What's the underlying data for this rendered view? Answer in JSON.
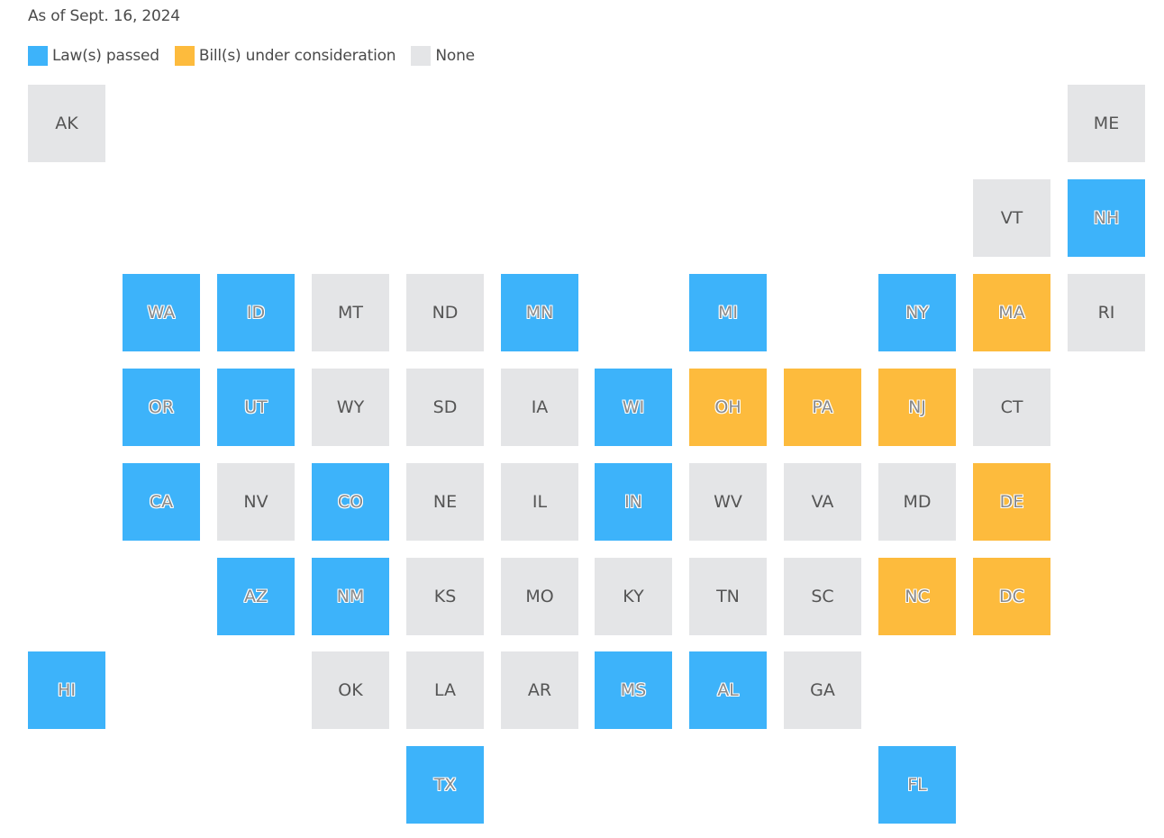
{
  "date_note": "As of Sept. 16, 2024",
  "colors": {
    "law": "#3db3fa",
    "bill": "#fdbb3d",
    "none": "#e4e5e7"
  },
  "legend": [
    {
      "key": "law",
      "label": "Law(s) passed"
    },
    {
      "key": "bill",
      "label": "Bill(s) under consideration"
    },
    {
      "key": "none",
      "label": "None"
    }
  ],
  "states": [
    {
      "abbr": "AK",
      "row": 0,
      "col": 0,
      "status": "none"
    },
    {
      "abbr": "ME",
      "row": 0,
      "col": 11,
      "status": "none"
    },
    {
      "abbr": "VT",
      "row": 1,
      "col": 10,
      "status": "none"
    },
    {
      "abbr": "NH",
      "row": 1,
      "col": 11,
      "status": "law"
    },
    {
      "abbr": "WA",
      "row": 2,
      "col": 1,
      "status": "law"
    },
    {
      "abbr": "ID",
      "row": 2,
      "col": 2,
      "status": "law"
    },
    {
      "abbr": "MT",
      "row": 2,
      "col": 3,
      "status": "none"
    },
    {
      "abbr": "ND",
      "row": 2,
      "col": 4,
      "status": "none"
    },
    {
      "abbr": "MN",
      "row": 2,
      "col": 5,
      "status": "law"
    },
    {
      "abbr": "MI",
      "row": 2,
      "col": 7,
      "status": "law"
    },
    {
      "abbr": "NY",
      "row": 2,
      "col": 9,
      "status": "law"
    },
    {
      "abbr": "MA",
      "row": 2,
      "col": 10,
      "status": "bill"
    },
    {
      "abbr": "RI",
      "row": 2,
      "col": 11,
      "status": "none"
    },
    {
      "abbr": "OR",
      "row": 3,
      "col": 1,
      "status": "law"
    },
    {
      "abbr": "UT",
      "row": 3,
      "col": 2,
      "status": "law"
    },
    {
      "abbr": "WY",
      "row": 3,
      "col": 3,
      "status": "none"
    },
    {
      "abbr": "SD",
      "row": 3,
      "col": 4,
      "status": "none"
    },
    {
      "abbr": "IA",
      "row": 3,
      "col": 5,
      "status": "none"
    },
    {
      "abbr": "WI",
      "row": 3,
      "col": 6,
      "status": "law"
    },
    {
      "abbr": "OH",
      "row": 3,
      "col": 7,
      "status": "bill"
    },
    {
      "abbr": "PA",
      "row": 3,
      "col": 8,
      "status": "bill"
    },
    {
      "abbr": "NJ",
      "row": 3,
      "col": 9,
      "status": "bill"
    },
    {
      "abbr": "CT",
      "row": 3,
      "col": 10,
      "status": "none"
    },
    {
      "abbr": "CA",
      "row": 4,
      "col": 1,
      "status": "law"
    },
    {
      "abbr": "NV",
      "row": 4,
      "col": 2,
      "status": "none"
    },
    {
      "abbr": "CO",
      "row": 4,
      "col": 3,
      "status": "law"
    },
    {
      "abbr": "NE",
      "row": 4,
      "col": 4,
      "status": "none"
    },
    {
      "abbr": "IL",
      "row": 4,
      "col": 5,
      "status": "none"
    },
    {
      "abbr": "IN",
      "row": 4,
      "col": 6,
      "status": "law"
    },
    {
      "abbr": "WV",
      "row": 4,
      "col": 7,
      "status": "none"
    },
    {
      "abbr": "VA",
      "row": 4,
      "col": 8,
      "status": "none"
    },
    {
      "abbr": "MD",
      "row": 4,
      "col": 9,
      "status": "none"
    },
    {
      "abbr": "DE",
      "row": 4,
      "col": 10,
      "status": "bill"
    },
    {
      "abbr": "AZ",
      "row": 5,
      "col": 2,
      "status": "law"
    },
    {
      "abbr": "NM",
      "row": 5,
      "col": 3,
      "status": "law"
    },
    {
      "abbr": "KS",
      "row": 5,
      "col": 4,
      "status": "none"
    },
    {
      "abbr": "MO",
      "row": 5,
      "col": 5,
      "status": "none"
    },
    {
      "abbr": "KY",
      "row": 5,
      "col": 6,
      "status": "none"
    },
    {
      "abbr": "TN",
      "row": 5,
      "col": 7,
      "status": "none"
    },
    {
      "abbr": "SC",
      "row": 5,
      "col": 8,
      "status": "none"
    },
    {
      "abbr": "NC",
      "row": 5,
      "col": 9,
      "status": "bill"
    },
    {
      "abbr": "DC",
      "row": 5,
      "col": 10,
      "status": "bill"
    },
    {
      "abbr": "HI",
      "row": 6,
      "col": 0,
      "status": "law"
    },
    {
      "abbr": "OK",
      "row": 6,
      "col": 3,
      "status": "none"
    },
    {
      "abbr": "LA",
      "row": 6,
      "col": 4,
      "status": "none"
    },
    {
      "abbr": "AR",
      "row": 6,
      "col": 5,
      "status": "none"
    },
    {
      "abbr": "MS",
      "row": 6,
      "col": 6,
      "status": "law"
    },
    {
      "abbr": "AL",
      "row": 6,
      "col": 7,
      "status": "law"
    },
    {
      "abbr": "GA",
      "row": 6,
      "col": 8,
      "status": "none"
    },
    {
      "abbr": "TX",
      "row": 7,
      "col": 4,
      "status": "law"
    },
    {
      "abbr": "FL",
      "row": 7,
      "col": 9,
      "status": "law"
    }
  ]
}
